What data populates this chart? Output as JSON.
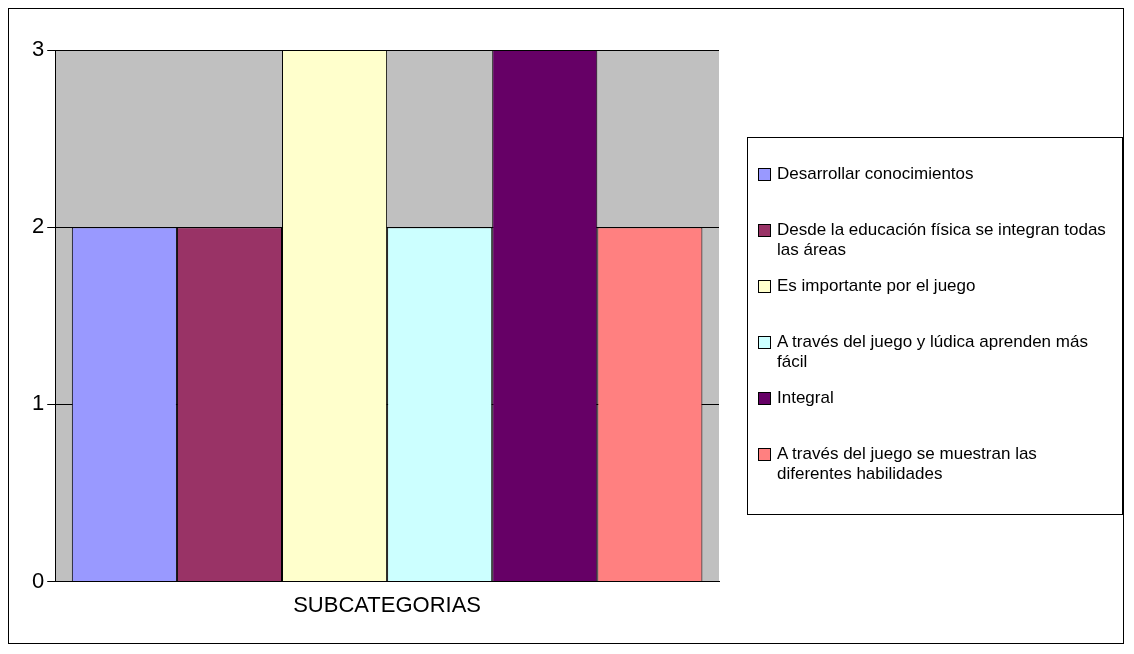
{
  "chart_data": {
    "type": "bar",
    "categories": [
      "SUBCATEGORIAS"
    ],
    "series": [
      {
        "name": "Desarrollar conocimientos",
        "color": "#9999ff",
        "values": [
          2
        ]
      },
      {
        "name": "Desde la educación física se integran todas las áreas",
        "color": "#993366",
        "values": [
          2
        ]
      },
      {
        "name": "Es importante por el juego",
        "color": "#ffffcc",
        "values": [
          3
        ]
      },
      {
        "name": "A través del juego y lúdica aprenden más fácil",
        "color": "#ccffff",
        "values": [
          2
        ]
      },
      {
        "name": "Integral",
        "color": "#660066",
        "values": [
          3
        ]
      },
      {
        "name": "A través del juego se muestran las diferentes habilidades",
        "color": "#ff8080",
        "values": [
          2
        ]
      }
    ],
    "ylim": [
      0,
      3
    ],
    "yticks": [
      0,
      1,
      2,
      3
    ],
    "grid": "y",
    "legend": "right"
  }
}
